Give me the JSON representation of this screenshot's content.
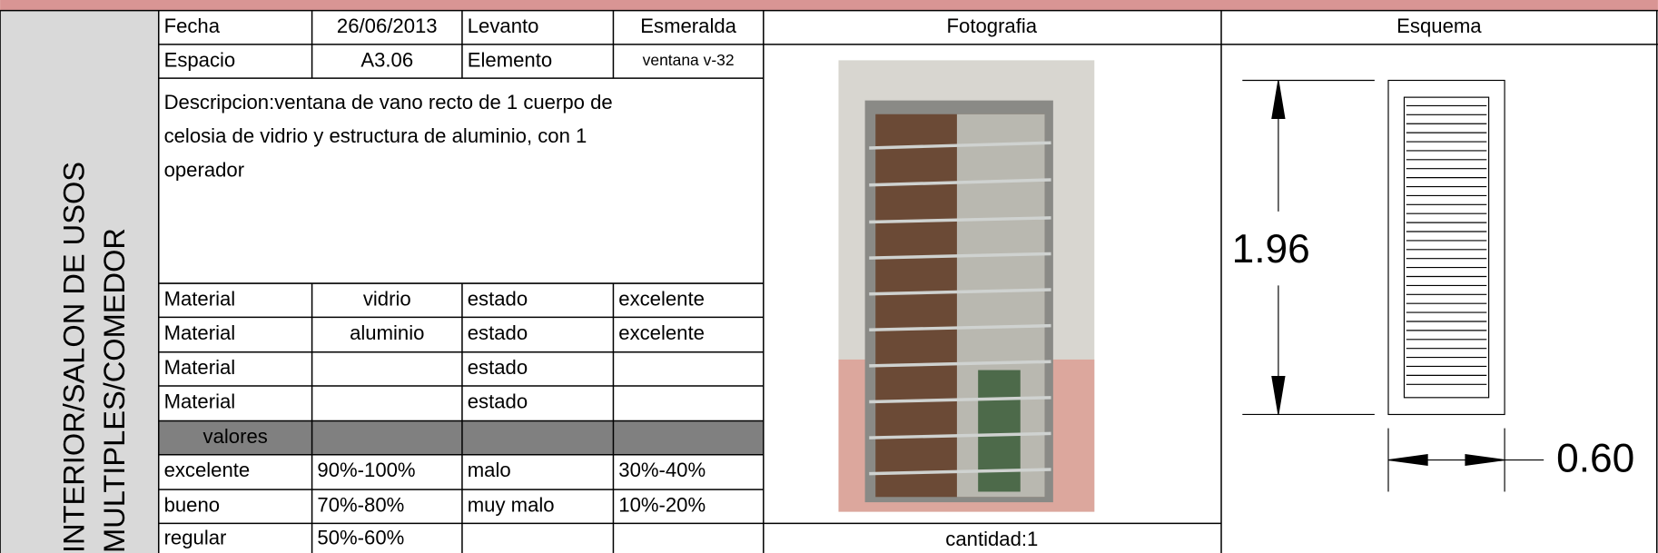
{
  "location": [
    "INTERIOR/SALON DE USOS",
    "MULTIPLES/COMEDOR"
  ],
  "header": {
    "fecha_label": "Fecha",
    "fecha": "26/06/2013",
    "levanto_label": "Levanto",
    "levanto": "Esmeralda",
    "espacio_label": "Espacio",
    "espacio": "A3.06",
    "elemento_label": "Elemento",
    "elemento": "ventana v-32"
  },
  "description": [
    "Descripcion:ventana de vano recto de  1 cuerpo  de",
    "celosia de vidrio y estructura de aluminio, con 1",
    "operador"
  ],
  "materials": [
    [
      "Material",
      "vidrio",
      "estado",
      "excelente"
    ],
    [
      "Material",
      "aluminio",
      "estado",
      "excelente"
    ],
    [
      "Material"
    ],
    [
      "Material"
    ]
  ],
  "materials_estado": [
    "estado",
    "estado"
  ],
  "scale": {
    "title": "valores",
    "rows": [
      [
        "excelente",
        "90%-100%",
        "malo",
        "30%-40%"
      ],
      [
        "bueno",
        "70%-80%",
        "muy malo",
        "10%-20%"
      ],
      [
        "regular",
        "50%-60%"
      ]
    ]
  },
  "photo": {
    "title": "Fotografia",
    "quantity": "cantidad:1"
  },
  "scheme": {
    "title": "Esquema",
    "height": "1.96",
    "width": "0.60"
  }
}
